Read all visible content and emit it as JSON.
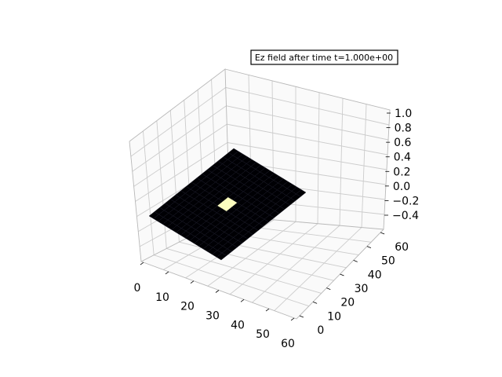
{
  "chart_data": {
    "type": "surface3d",
    "title": "Ez field after time t=1.000e+00",
    "xlabel": "",
    "ylabel": "",
    "zlabel": "",
    "x_ticks": [
      "0",
      "10",
      "20",
      "30",
      "40",
      "50",
      "60"
    ],
    "y_ticks": [
      "0",
      "10",
      "20",
      "30",
      "40",
      "50",
      "60"
    ],
    "z_ticks": [
      "1.0",
      "0.8",
      "0.6",
      "0.4",
      "0.2",
      "0.0",
      "−0.2",
      "−0.4"
    ],
    "x_range": [
      0,
      60
    ],
    "y_range": [
      0,
      60
    ],
    "z_range": [
      -0.4,
      1.0
    ],
    "grid": true,
    "colormap": "magma",
    "surface": {
      "description_value_background": 0.0,
      "peak_value": 1.0,
      "peak_x_range": [
        27,
        33
      ],
      "peak_y_range": [
        27,
        33
      ]
    },
    "colors": {
      "surface_low": "#000004",
      "surface_peak": "#fcfdbf",
      "pane": "#f2f2f2",
      "grid": "#cccccc"
    }
  }
}
